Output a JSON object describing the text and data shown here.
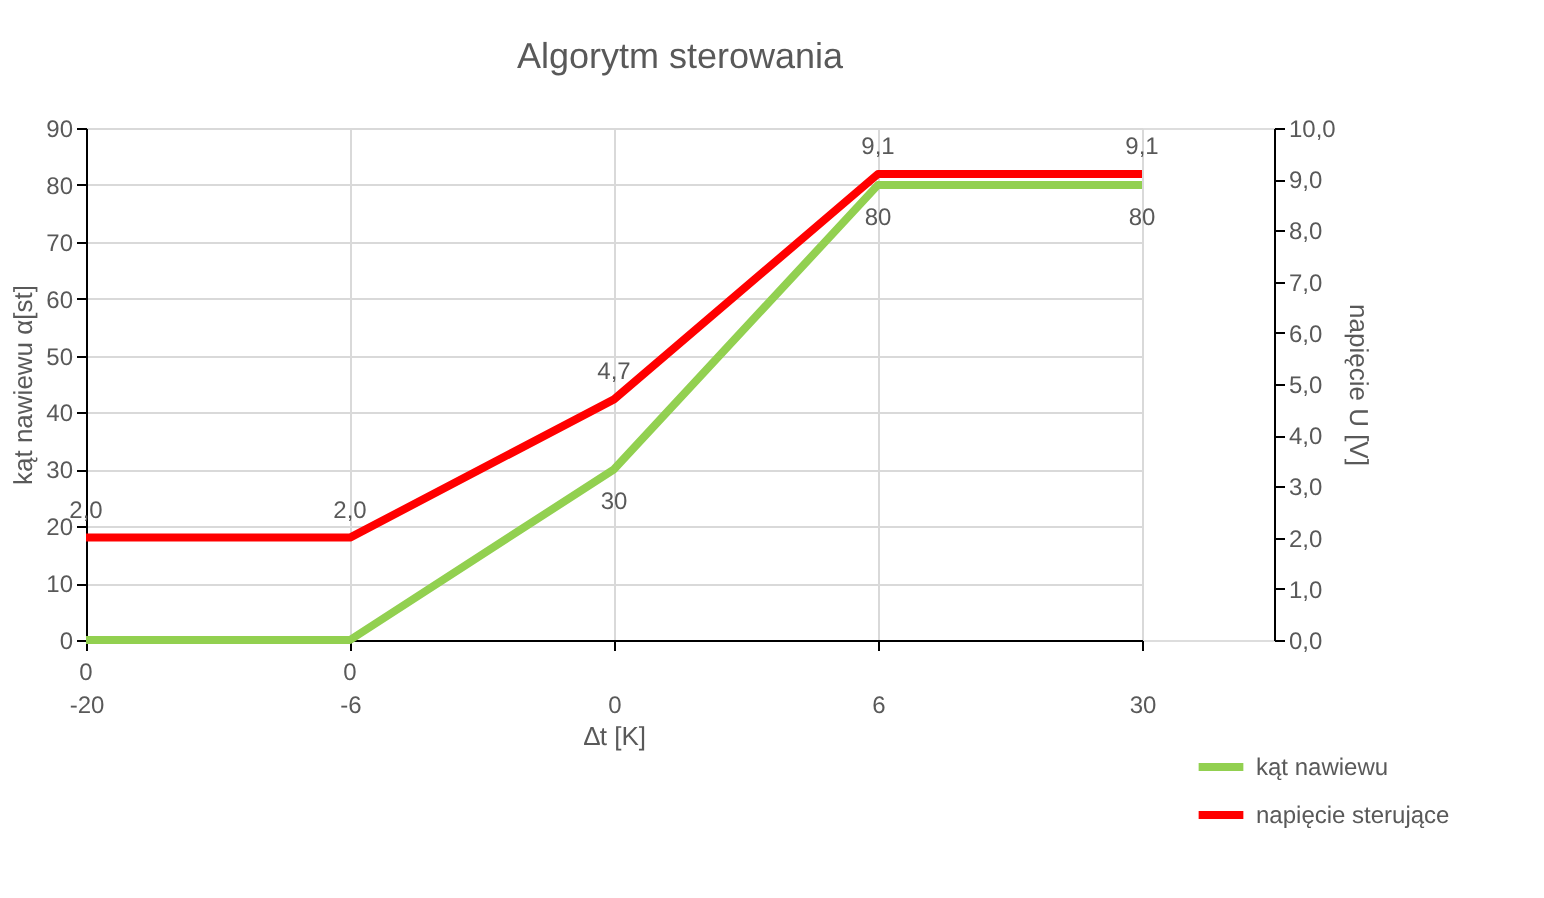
{
  "chart_data": {
    "type": "line",
    "title": "Algorytm sterowania",
    "xlabel": "∆t [K]",
    "ylabel": "kąt nawiewu α[st]",
    "y2label": "napięcie U [V]",
    "categories": [
      "-20",
      "-6",
      "0",
      "6",
      "30"
    ],
    "series": [
      {
        "name": "kąt nawiewu",
        "color": "#92d050",
        "values": [
          0,
          0,
          30,
          80,
          80
        ],
        "value_labels": [
          "0",
          "0",
          "30",
          "80",
          "80"
        ]
      },
      {
        "name": "napięcie sterujące",
        "color": "#ff0000",
        "axis": "y2",
        "values": [
          2.0,
          2.0,
          4.7,
          9.1,
          9.1
        ],
        "value_labels": [
          "2,0",
          "2,0",
          "4,7",
          "9,1",
          "9,1"
        ]
      }
    ],
    "ylim": [
      0,
      90
    ],
    "yticks": [
      0,
      10,
      20,
      30,
      40,
      50,
      60,
      70,
      80,
      90
    ],
    "y2lim": [
      0,
      10
    ],
    "y2ticks": [
      {
        "value": 0,
        "label": "0,0"
      },
      {
        "value": 1,
        "label": "1,0"
      },
      {
        "value": 2,
        "label": "2,0"
      },
      {
        "value": 3,
        "label": "3,0"
      },
      {
        "value": 4,
        "label": "4,0"
      },
      {
        "value": 5,
        "label": "5,0"
      },
      {
        "value": 6,
        "label": "6,0"
      },
      {
        "value": 7,
        "label": "7,0"
      },
      {
        "value": 8,
        "label": "8,0"
      },
      {
        "value": 9,
        "label": "9,0"
      },
      {
        "value": 10,
        "label": "10,0"
      }
    ],
    "grid": true,
    "legend": "bottom right",
    "marker": "none",
    "line_style": "solid"
  }
}
